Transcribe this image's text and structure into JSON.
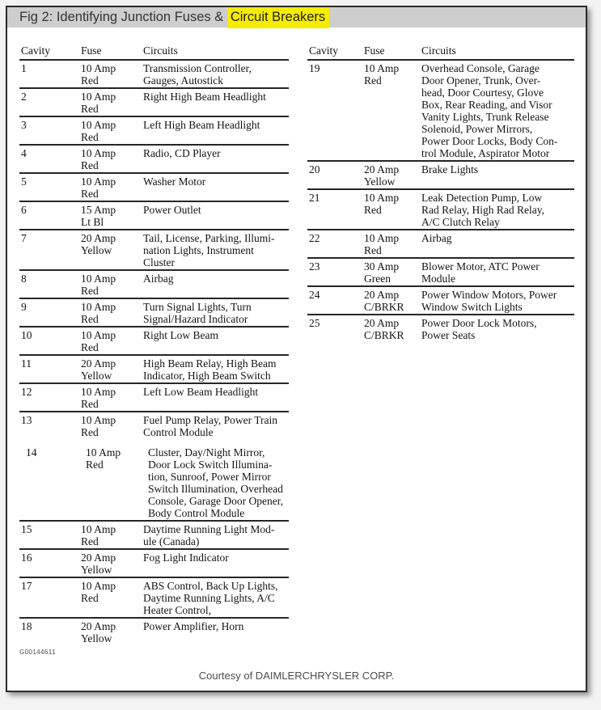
{
  "title": {
    "prefix": "Fig 2: Identifying Junction Fuses & ",
    "highlight": "Circuit Breakers"
  },
  "colors": {
    "title_bar": "#cecece",
    "highlight": "#f6ec00",
    "frame_border": "#2b2b2b",
    "table_rule": "#262626"
  },
  "columns": [
    "Cavity",
    "Fuse",
    "Circuits"
  ],
  "left_table": {
    "rows": [
      {
        "cavity": "1",
        "fuse": "10 Amp\nRed",
        "circuits": "Transmission Controller,\nGauges, Autostick"
      },
      {
        "cavity": "2",
        "fuse": "10 Amp\nRed",
        "circuits": "Right High Beam Headlight"
      },
      {
        "cavity": "3",
        "fuse": "10 Amp\nRed",
        "circuits": "Left High Beam Headlight"
      },
      {
        "cavity": "4",
        "fuse": "10 Amp\nRed",
        "circuits": "Radio, CD Player"
      },
      {
        "cavity": "5",
        "fuse": "10 Amp\nRed",
        "circuits": "Washer Motor"
      },
      {
        "cavity": "6",
        "fuse": "15 Amp\nLt Bl",
        "circuits": "Power Outlet"
      },
      {
        "cavity": "7",
        "fuse": "20 Amp\nYellow",
        "circuits": "Tail, License, Parking, Illumi-\nnation Lights, Instrument\nCluster"
      },
      {
        "cavity": "8",
        "fuse": "10 Amp\nRed",
        "circuits": "Airbag"
      },
      {
        "cavity": "9",
        "fuse": "10 Amp\nRed",
        "circuits": "Turn Signal Lights, Turn\nSignal/Hazard Indicator"
      },
      {
        "cavity": "10",
        "fuse": "10 Amp\nRed",
        "circuits": "Right Low Beam"
      },
      {
        "cavity": "11",
        "fuse": "20 Amp\nYellow",
        "circuits": "High Beam Relay, High Beam\nIndicator, High Beam Switch"
      },
      {
        "cavity": "12",
        "fuse": "10 Amp\nRed",
        "circuits": "Left Low Beam Headlight"
      },
      {
        "cavity": "13",
        "fuse": "10 Amp\nRed",
        "circuits": "Fuel Pump Relay, Power Train\nControl Module",
        "separator_after": false
      },
      {
        "cavity": "14",
        "fuse": "10 Amp\nRed",
        "circuits": "Cluster, Day/Night Mirror,\nDoor Lock Switch Illumina-\ntion, Sunroof, Power Mirror\nSwitch Illumination, Overhead\nConsole, Garage Door Opener,\nBody Control Module",
        "indent": true,
        "gap_before": true
      },
      {
        "cavity": "15",
        "fuse": "10 Amp\nRed",
        "circuits": "Daytime Running Light Mod-\nule (Canada)"
      },
      {
        "cavity": "16",
        "fuse": "20 Amp\nYellow",
        "circuits": "Fog Light Indicator"
      },
      {
        "cavity": "17",
        "fuse": "10 Amp\nRed",
        "circuits": "ABS Control, Back Up Lights,\nDaytime Running Lights, A/C\nHeater Control,"
      },
      {
        "cavity": "18",
        "fuse": "20 Amp\nYellow",
        "circuits": "Power Amplifier, Horn",
        "separator_after": false
      }
    ]
  },
  "right_table": {
    "rows": [
      {
        "cavity": "19",
        "fuse": "10 Amp\nRed",
        "circuits": "Overhead Console, Garage\nDoor Opener, Trunk, Over-\nhead, Door Courtesy, Glove\nBox, Rear Reading, and Visor\nVanity Lights, Trunk Release\nSolenoid, Power Mirrors,\nPower Door Locks, Body Con-\ntrol Module, Aspirator Motor"
      },
      {
        "cavity": "20",
        "fuse": "20 Amp\nYellow",
        "circuits": "Brake Lights"
      },
      {
        "cavity": "21",
        "fuse": "10 Amp\nRed",
        "circuits": "Leak Detection Pump, Low\nRad Relay, High Rad Relay,\nA/C Clutch Relay"
      },
      {
        "cavity": "22",
        "fuse": "10 Amp\nRed",
        "circuits": "Airbag"
      },
      {
        "cavity": "23",
        "fuse": "30 Amp\nGreen",
        "circuits": "Blower Motor, ATC Power\nModule"
      },
      {
        "cavity": "24",
        "fuse": "20 Amp\nC/BRKR",
        "circuits": "Power Window Motors, Power\nWindow Switch Lights"
      },
      {
        "cavity": "25",
        "fuse": "20 Amp\nC/BRKR",
        "circuits": "Power Door Lock Motors,\nPower Seats",
        "separator_after": false
      }
    ]
  },
  "figure_id": "G00144611",
  "footer": {
    "courtesy": "Courtesy of DAIMLERCHRYSLER CORP."
  }
}
